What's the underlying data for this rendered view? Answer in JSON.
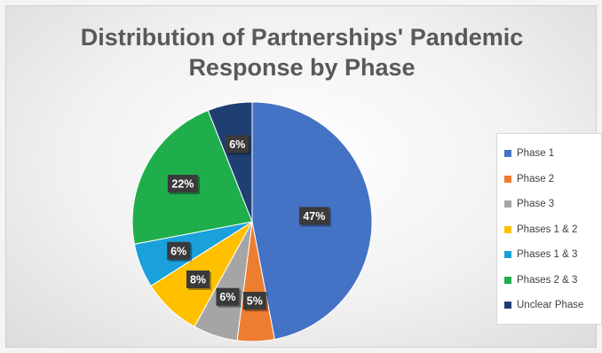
{
  "chart_data": {
    "type": "pie",
    "title_lines": [
      "Distribution of Partnerships' Pandemic",
      "Response by Phase"
    ],
    "slices": [
      {
        "label": "Phase 1",
        "value": 47,
        "display": "47%",
        "color": "#4472C4"
      },
      {
        "label": "Phase 2",
        "value": 5,
        "display": "5%",
        "color": "#ED7D31"
      },
      {
        "label": "Phase 3",
        "value": 6,
        "display": "6%",
        "color": "#A5A5A5"
      },
      {
        "label": "Phases 1 & 2",
        "value": 8,
        "display": "8%",
        "color": "#FFC000"
      },
      {
        "label": "Phases 1 & 3",
        "value": 6,
        "display": "6%",
        "color": "#1AA0DB"
      },
      {
        "label": "Phases 2 & 3",
        "value": 22,
        "display": "22%",
        "color": "#1FAE4B"
      },
      {
        "label": "Unclear Phase",
        "value": 6,
        "display": "6%",
        "color": "#1F3F73"
      }
    ],
    "legend_position": "right"
  }
}
